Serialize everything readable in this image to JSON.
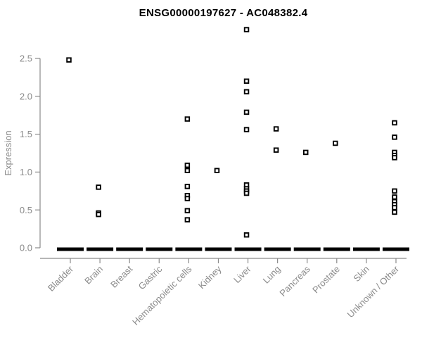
{
  "chart_data": {
    "type": "scatter",
    "title": "ENSG00000197627 - AC048382.4",
    "xlabel": "",
    "ylabel": "Expression",
    "ylim": [
      0,
      2.9
    ],
    "yticks": [
      0.0,
      0.5,
      1.0,
      1.5,
      2.0,
      2.5
    ],
    "grid": false,
    "legend": "none",
    "marker": "open-square",
    "categories": [
      "Bladder",
      "Brain",
      "Breast",
      "Gastric",
      "Hematopoietic cells",
      "Kidney",
      "Liver",
      "Lung",
      "Pancreas",
      "Prostate",
      "Skin",
      "Unknown / Other"
    ],
    "groups": [
      {
        "label": "Bladder",
        "zero_cluster": true,
        "values": [
          2.48
        ]
      },
      {
        "label": "Brain",
        "zero_cluster": true,
        "values": [
          0.8,
          0.46,
          0.44
        ]
      },
      {
        "label": "Breast",
        "zero_cluster": true,
        "values": []
      },
      {
        "label": "Gastric",
        "zero_cluster": true,
        "values": []
      },
      {
        "label": "Hematopoietic cells",
        "zero_cluster": true,
        "values": [
          1.7,
          1.09,
          1.02,
          0.81,
          0.69,
          0.65,
          0.49,
          0.37
        ]
      },
      {
        "label": "Kidney",
        "zero_cluster": true,
        "values": [
          1.02
        ]
      },
      {
        "label": "Liver",
        "zero_cluster": true,
        "values": [
          2.88,
          2.2,
          2.06,
          1.79,
          1.56,
          0.83,
          0.78,
          0.75,
          0.72,
          0.17
        ]
      },
      {
        "label": "Lung",
        "zero_cluster": true,
        "values": [
          1.57,
          1.29
        ]
      },
      {
        "label": "Pancreas",
        "zero_cluster": true,
        "values": [
          1.26
        ]
      },
      {
        "label": "Prostate",
        "zero_cluster": true,
        "values": [
          1.38
        ]
      },
      {
        "label": "Skin",
        "zero_cluster": true,
        "values": []
      },
      {
        "label": "Unknown / Other",
        "zero_cluster": true,
        "values": [
          1.65,
          1.46,
          1.26,
          1.22,
          1.19,
          0.75,
          0.67,
          0.61,
          0.57,
          0.53,
          0.47
        ]
      }
    ],
    "colors": {
      "point_stroke": "#000000",
      "point_fill": "#ffffff",
      "zero_bar": "#000000",
      "axis": "#8a8a8a",
      "tick_label": "#8a8a8a",
      "axis_label": "#8a8a8a",
      "title": "#000000",
      "background": "#ffffff"
    }
  }
}
